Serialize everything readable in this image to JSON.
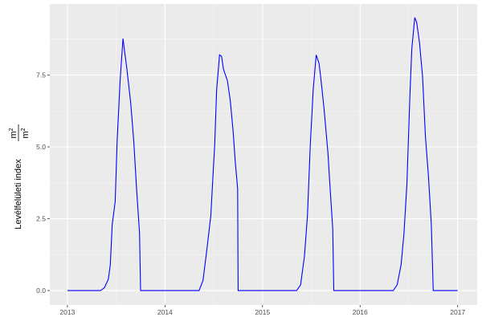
{
  "chart_data": {
    "type": "line",
    "title": "",
    "xlabel": "",
    "ylabel": "Levélfelületi index",
    "ylabel_unit_num": "m",
    "ylabel_unit_den": "m",
    "ylabel_unit_exp": "2",
    "xlim": [
      2012.82,
      2017.2
    ],
    "ylim": [
      -0.5,
      9.97
    ],
    "x_ticks": [
      2013,
      2014,
      2015,
      2016,
      2017
    ],
    "x_tick_labels": [
      "2013",
      "2014",
      "2015",
      "2016",
      "2017"
    ],
    "y_ticks": [
      0,
      2.5,
      5,
      7.5
    ],
    "y_tick_labels": [
      "0.0",
      "2.5",
      "5.0",
      "7.5"
    ],
    "grid": true,
    "line_color": "#0000ff",
    "panel_background": "#ebebeb",
    "x": [
      2013.0,
      2013.34,
      2013.38,
      2013.42,
      2013.44,
      2013.46,
      2013.49,
      2013.51,
      2013.54,
      2013.57,
      2013.58,
      2013.61,
      2013.65,
      2013.68,
      2013.71,
      2013.74,
      2013.75,
      2014.35,
      2014.39,
      2014.43,
      2014.47,
      2014.51,
      2014.53,
      2014.56,
      2014.58,
      2014.6,
      2014.64,
      2014.67,
      2014.7,
      2014.72,
      2014.745,
      2014.75,
      2015.35,
      2015.39,
      2015.43,
      2015.46,
      2015.49,
      2015.52,
      2015.55,
      2015.58,
      2015.6,
      2015.63,
      2015.67,
      2015.69,
      2015.72,
      2015.73,
      2016.34,
      2016.38,
      2016.42,
      2016.45,
      2016.48,
      2016.51,
      2016.53,
      2016.56,
      2016.58,
      2016.61,
      2016.64,
      2016.67,
      2016.7,
      2016.73,
      2016.75,
      2017.0
    ],
    "y": [
      0,
      0,
      0.1,
      0.4,
      0.9,
      2.3,
      3.1,
      5.2,
      7.3,
      8.77,
      8.5,
      7.7,
      6.5,
      5.2,
      3.5,
      2.0,
      0,
      0,
      0.35,
      1.45,
      2.6,
      5.1,
      7.0,
      8.2,
      8.15,
      7.7,
      7.3,
      6.6,
      5.5,
      4.5,
      3.55,
      0,
      0,
      0.2,
      1.2,
      2.6,
      5.1,
      7.0,
      8.2,
      7.9,
      7.3,
      6.35,
      4.8,
      3.7,
      2.15,
      0,
      0,
      0.2,
      0.9,
      2.0,
      3.7,
      6.75,
      8.4,
      9.5,
      9.33,
      8.6,
      7.45,
      5.35,
      4.0,
      2.3,
      0,
      0
    ]
  }
}
